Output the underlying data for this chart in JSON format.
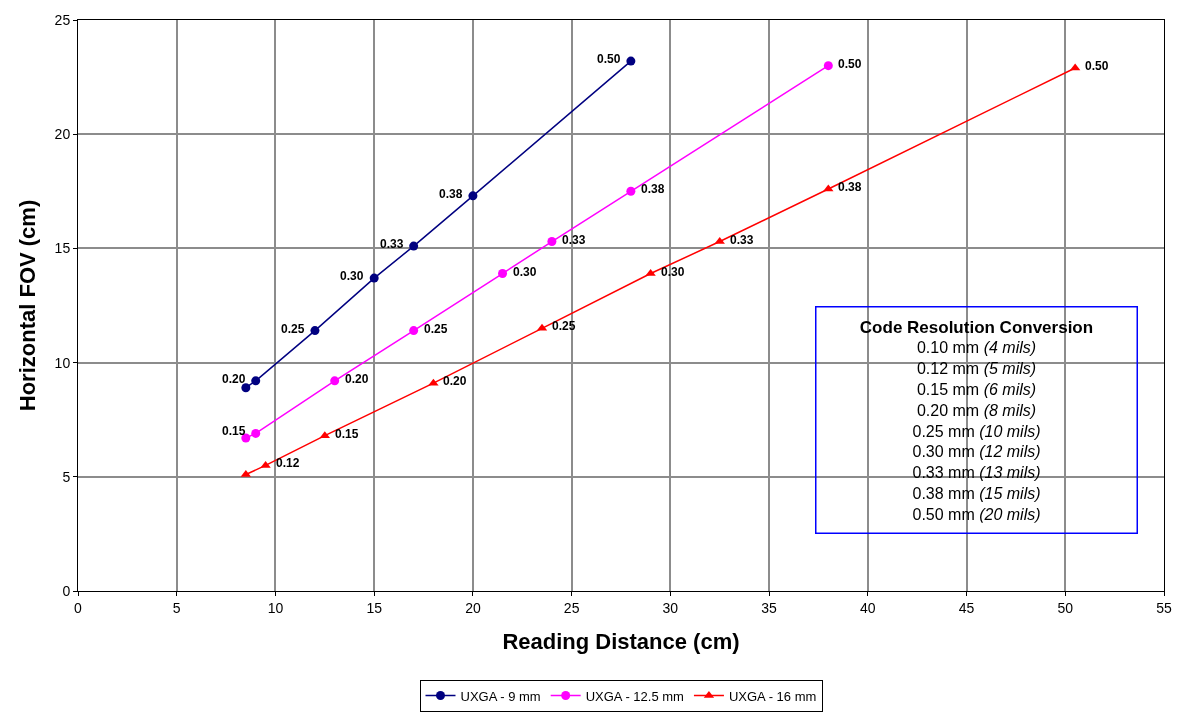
{
  "chart_data": {
    "type": "line",
    "xlabel": "Reading Distance (cm)",
    "ylabel": "Horizontal FOV (cm)",
    "xlim": [
      0,
      55
    ],
    "xticks": [
      0,
      5,
      10,
      15,
      20,
      25,
      30,
      35,
      40,
      45,
      50,
      55
    ],
    "ylim": [
      0,
      25
    ],
    "yticks": [
      0,
      5,
      10,
      15,
      20,
      25
    ],
    "grid": true,
    "legend": "bottom",
    "series": [
      {
        "name": "UXGA - 9 mm",
        "color": "#000080",
        "marker": "circle",
        "x": [
          8.5,
          9,
          12,
          15,
          17,
          20,
          28
        ],
        "values": [
          8.9,
          9.2,
          11.4,
          13.7,
          15.1,
          17.3,
          23.2
        ]
      },
      {
        "name": "UXGA - 12.5 mm",
        "color": "#ff00ff",
        "marker": "circle",
        "x": [
          8.5,
          9,
          13,
          17,
          21.5,
          24,
          28,
          38
        ],
        "values": [
          6.7,
          6.9,
          9.2,
          11.4,
          13.9,
          15.3,
          17.5,
          23.0
        ]
      },
      {
        "name": "UXGA - 16 mm",
        "color": "#ff0000",
        "marker": "triangle",
        "x": [
          8.5,
          9.5,
          12.5,
          18,
          23.5,
          29,
          32.5,
          38,
          50.5
        ],
        "values": [
          5.1,
          5.5,
          6.8,
          9.1,
          11.5,
          13.9,
          15.3,
          17.6,
          22.9
        ]
      }
    ],
    "annotations": [
      {
        "text": "0.20",
        "x": 9,
        "y": 9.2
      },
      {
        "text": "0.25",
        "x": 12,
        "y": 11.4
      },
      {
        "text": "0.30",
        "x": 15,
        "y": 13.7
      },
      {
        "text": "0.33",
        "x": 17,
        "y": 15.1
      },
      {
        "text": "0.38",
        "x": 20,
        "y": 17.3
      },
      {
        "text": "0.50",
        "x": 28,
        "y": 23.2
      },
      {
        "text": "0.15",
        "x": 9,
        "y": 6.9
      },
      {
        "text": "0.20",
        "x": 13,
        "y": 9.2
      },
      {
        "text": "0.25",
        "x": 17,
        "y": 11.4
      },
      {
        "text": "0.30",
        "x": 21.5,
        "y": 13.9
      },
      {
        "text": "0.33",
        "x": 24,
        "y": 15.3
      },
      {
        "text": "0.38",
        "x": 28,
        "y": 17.5
      },
      {
        "text": "0.50",
        "x": 38,
        "y": 23.0
      },
      {
        "text": "0.12",
        "x": 9.5,
        "y": 5.5
      },
      {
        "text": "0.15",
        "x": 12.5,
        "y": 6.8
      },
      {
        "text": "0.20",
        "x": 18,
        "y": 9.1
      },
      {
        "text": "0.25",
        "x": 23.5,
        "y": 11.5
      },
      {
        "text": "0.30",
        "x": 29,
        "y": 13.9
      },
      {
        "text": "0.33",
        "x": 32.5,
        "y": 15.3
      },
      {
        "text": "0.38",
        "x": 38,
        "y": 17.6
      },
      {
        "text": "0.50",
        "x": 50.5,
        "y": 22.9
      },
      "Code Resolution Conversion",
      "0.10 mm (4 mils)",
      "0.12 mm (5 mils)",
      "0.15 mm (6 mils)",
      "0.20 mm (8 mils)",
      "0.25 mm (10 mils)",
      "0.30 mm (12 mils)",
      "0.33 mm (13 mils)",
      "0.38 mm (15 mils)",
      "0.50 mm (20 mils)"
    ]
  }
}
